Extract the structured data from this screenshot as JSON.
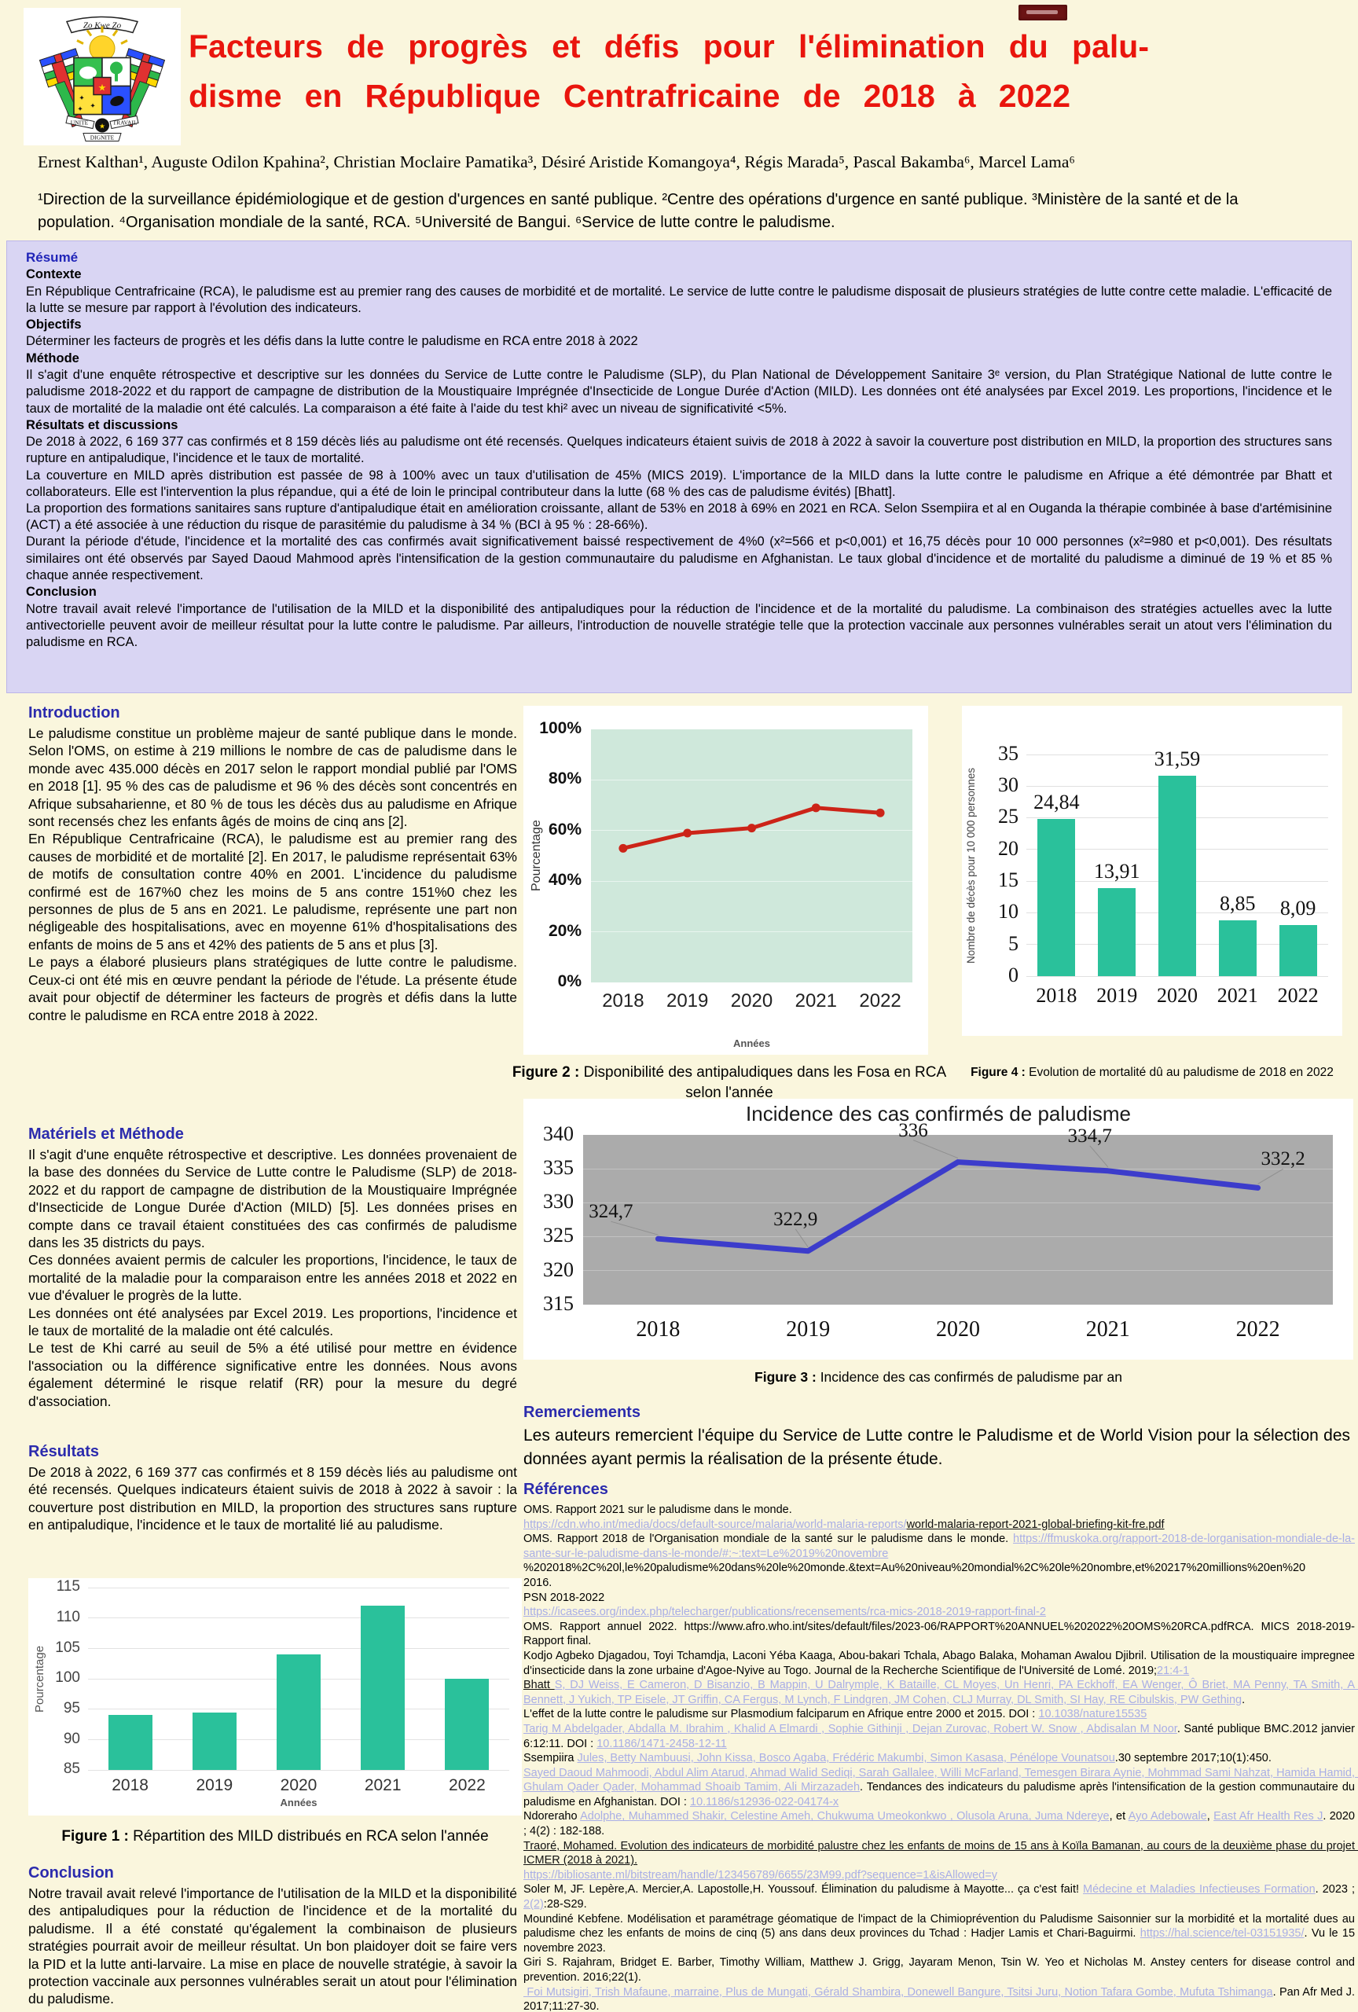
{
  "header": {
    "title_line1": "Facteurs de progrès et défis pour l'élimination du palu-",
    "title_line2": "disme en République Centrafricaine de 2018 à 2022",
    "title_color": "#e9150d",
    "authors": "Ernest Kalthan¹, Auguste Odilon Kpahina², Christian Moclaire Pamatika³, Désiré Aristide Komangoya⁴, Régis Marada⁵, Pascal Bakamba⁶, Marcel Lama⁶",
    "affiliations": "¹Direction de la surveillance épidémiologique et de gestion d'urgences en santé publique. ²Centre des opérations d'urgence en santé publique. ³Ministère de la santé et de la population. ⁴Organisation mondiale de la santé, RCA. ⁵Université de Bangui. ⁶Service de lutte contre le paludisme.",
    "logo": {
      "motto_top": "Zo Kwe Zo",
      "unite": "UNITE",
      "travail": "TRAVAIL",
      "dignite": "DIGNITE"
    }
  },
  "resume": {
    "title": "Résumé",
    "sections": [
      {
        "heading": "Contexte",
        "body": "En République Centrafricaine (RCA), le paludisme est au premier rang des causes de morbidité et de mortalité. Le service de lutte contre le paludisme disposait de plusieurs stratégies de lutte contre cette maladie. L'efficacité de la lutte se mesure par rapport à l'évolution des indicateurs."
      },
      {
        "heading": "Objectifs",
        "body": "Déterminer les facteurs de progrès et les défis dans la lutte contre le paludisme en RCA entre 2018 à 2022"
      },
      {
        "heading": "Méthode",
        "body": "Il s'agit d'une enquête rétrospective et descriptive sur les données du Service de Lutte contre le Paludisme (SLP), du Plan National de Développement Sanitaire 3ᵉ version, du Plan Stratégique National de lutte contre le paludisme 2018-2022 et du rapport de campagne de distribution de la Moustiquaire Imprégnée d'Insecticide de Longue Durée d'Action (MILD). Les données ont été analysées par Excel 2019. Les proportions, l'incidence et le taux de mortalité de la maladie ont été calculés. La comparaison a été faite à l'aide du test khi² avec un niveau de significativité <5%."
      },
      {
        "heading": "Résultats et discussions",
        "body": "De 2018 à 2022, 6 169 377 cas confirmés et 8 159 décès liés au paludisme ont été recensés. Quelques indicateurs étaient suivis de 2018 à 2022 à savoir la couverture post distribution en MILD, la proportion des structures sans rupture en antipaludique, l'incidence et le taux de mortalité.\nLa couverture en MILD après distribution est passée de 98 à 100% avec un taux d'utilisation de 45% (MICS 2019). L'importance de la MILD dans la lutte contre le paludisme en Afrique a été démontrée par Bhatt et collaborateurs. Elle est l'intervention la plus répandue, qui a été de loin le principal contributeur dans la lutte (68 % des cas de paludisme évités) [Bhatt].\nLa proportion des formations sanitaires sans rupture d'antipaludique était en amélioration croissante, allant de 53% en 2018 à 69% en 2021 en RCA. Selon Ssempiira et al en Ouganda la thérapie combinée à base d'artémisinine (ACT) a été associée à une réduction du risque de parasitémie du paludisme à 34 % (BCI à 95 % : 28-66%).\nDurant la période d'étude, l'incidence et la mortalité des cas confirmés avait significativement baissé respectivement de 4%0 (x²=566 et p<0,001) et 16,75 décès pour 10 000 personnes (x²=980 et p<0,001). Des résultats similaires ont été observés par Sayed Daoud Mahmood après l'intensification de la gestion communautaire du paludisme en Afghanistan. Le taux global d'incidence et de mortalité du paludisme a diminué de 19 % et 85 % chaque année respectivement."
      },
      {
        "heading": "Conclusion",
        "body": "Notre travail avait relevé l'importance de l'utilisation de la MILD et la disponibilité des antipaludiques pour la réduction de l'incidence et de la mortalité du paludisme. La combinaison des stratégies actuelles avec la lutte antivectorielle peuvent avoir de meilleur résultat pour la lutte contre le paludisme. Par ailleurs, l'introduction de nouvelle stratégie telle que la protection vaccinale aux personnes vulnérables serait un atout vers l'élimination du paludisme en RCA."
      }
    ]
  },
  "left": {
    "intro_heading": "Introduction",
    "intro_body": "Le paludisme constitue un problème majeur de santé publique dans le monde. Selon l'OMS, on estime à 219 millions le nombre de cas de paludisme dans le monde avec 435.000 décès en 2017 selon le rapport mondial publié par l'OMS en 2018 [1]. 95 % des cas de paludisme et 96 % des décès sont concentrés en Afrique subsaharienne, et 80 % de tous les décès dus au paludisme en Afrique sont recensés chez les enfants âgés de moins de cinq ans [2].\nEn République Centrafricaine (RCA), le paludisme est au premier rang des causes de morbidité et de mortalité [2]. En 2017, le paludisme représentait 63% de motifs de consultation contre 40% en 2001. L'incidence du paludisme confirmé est de 167%0 chez les moins de 5 ans contre 151%0 chez les personnes de plus de 5 ans en 2021. Le paludisme, représente une part non négligeable des hospitalisations, avec en moyenne 61% d'hospitalisations des enfants de moins de 5 ans et 42% des patients de 5 ans et plus [3].\nLe pays a élaboré plusieurs plans stratégiques de lutte contre le paludisme. Ceux-ci ont été mis en œuvre pendant la période de l'étude. La présente étude avait pour objectif de déterminer les facteurs de progrès et défis dans la lutte contre le paludisme en RCA entre 2018 à 2022.",
    "methods_heading": "Matériels et Méthode",
    "methods_body": "Il s'agit d'une enquête rétrospective et descriptive. Les données provenaient de la base des données du Service de Lutte contre le Paludisme (SLP) de 2018-2022 et du rapport de campagne de distribution de la Moustiquaire Imprégnée d'Insecticide de Longue Durée d'Action (MILD) [5]. Les données prises en compte dans ce travail étaient constituées des cas confirmés de paludisme dans les 35 districts du pays.\nCes données avaient permis de calculer les proportions, l'incidence, le taux de mortalité de la maladie pour la comparaison entre les années 2018 et 2022 en vue d'évaluer le progrès de la lutte.\nLes données ont été analysées par Excel 2019. Les proportions, l'incidence et le taux de mortalité de la maladie ont été calculés.\nLe test de Khi carré au seuil de 5% a été utilisé pour mettre en évidence l'association ou la différence significative entre les données. Nous avons également déterminé le risque relatif (RR) pour la mesure du degré d'association.",
    "results_heading": "Résultats",
    "results_body": "De 2018 à 2022, 6 169 377 cas confirmés et 8 159 décès liés au paludisme ont été recensés. Quelques indicateurs étaient suivis de 2018 à 2022 à savoir : la couverture post distribution en MILD, la proportion des structures sans rupture en antipaludique, l'incidence et le taux de mortalité lié au paludisme.",
    "conclusion_heading": "Conclusion",
    "conclusion_body": "Notre travail avait relevé l'importance de l'utilisation de la MILD et la disponibilité des antipaludiques pour la réduction de l'incidence et de la mortalité du paludisme. Il a été constaté qu'également la combinaison de plusieurs stratégies pourrait avoir de meilleur résultat. Un bon plaidoyer doit se faire vers la PID et la lutte anti-larvaire. La mise en place de nouvelle stratégie, à savoir la protection vaccinale aux personnes vulnérables serait un atout pour l'élimination du paludisme."
  },
  "figures": {
    "fig1_caption_prefix": "Figure 1 :",
    "fig1_caption": "Répartition des MILD distribués en RCA selon l'année",
    "fig2_caption_prefix": "Figure 2 :",
    "fig2_caption": "Disponibilité des antipaludiques dans les Fosa en RCA selon l'année",
    "fig3_caption_prefix": "Figure 3 :",
    "fig3_caption": "Incidence des cas confirmés de paludisme par an",
    "fig4_caption_prefix": "Figure 4 :",
    "fig4_caption": "Evolution de mortalité dû au paludisme de 2018 en 2022"
  },
  "remerciements": {
    "heading": "Remerciements",
    "body": "Les auteurs remercient l'équipe du Service de Lutte contre le Paludisme et de World Vision pour la sélection des données ayant permis la réalisation de la présente étude."
  },
  "references": {
    "heading": "Références",
    "items": [
      [
        {
          "t": "OMS. Rapport 2021 sur le paludisme dans le monde.\n",
          "s": "n"
        },
        {
          "t": "https://cdn.who.int/media/docs/default-source/malaria/world-malaria-reports/",
          "s": "l"
        },
        {
          "t": "world-malaria-report-2021-global-briefing-kit-fre.pdf",
          "s": "u"
        }
      ],
      [
        {
          "t": "OMS. Rapport 2018 de l'Organisation mondiale de la santé sur le paludisme dans le monde. ",
          "s": "n"
        },
        {
          "t": "https://ffmuskoka.org/rapport-2018-de-lorganisation-mondiale-de-la-sante-sur-le-paludisme-dans-le-monde/#:~:text=Le%2019%20novembre",
          "s": "l"
        },
        {
          "t": "\n%202018%2C%20l,le%20paludisme%20dans%20le%20monde.&text=Au%20niveau%20mondial%2C%20le%20nombre,et%20217%20millions%20en%20\n2016.",
          "s": "n"
        }
      ],
      [
        {
          "t": "PSN 2018-2022",
          "s": "n"
        }
      ],
      [
        {
          "t": "https://icasees.org/index.php/telecharger/publications/recensements/rca-mics-2018-2019-rapport-final-2",
          "s": "l"
        }
      ],
      [
        {
          "t": "OMS. Rapport annuel 2022. https://www.afro.who.int/sites/default/files/2023-06/RAPPORT%20ANNUEL%202022%20OMS%20RCA.pdfRCA. MICS 2018-2019-Rapport final.",
          "s": "n"
        }
      ],
      [
        {
          "t": "Kodjo Agbeko Djagadou, Toyi Tchamdja, Laconi Yéba Kaaga, Abou-bakari Tchala, Abago Balaka, Mohaman Awalou Djibril. Utilisation de la moustiquaire impregnee d'insecticide dans la zone urbaine d'Agoe-Nyive au Togo. Journal de la Recherche Scientifique de l'Université de Lomé. 2019;",
          "s": "n"
        },
        {
          "t": "21:4-1",
          "s": "l"
        }
      ],
      [
        {
          "t": "Bhatt ",
          "s": "u"
        },
        {
          "t": "S, DJ Weiss, E Cameron, D Bisanzio, B Mappin, U Dalrymple, K Bataille, CL Moyes, Un Henri, PA Eckhoff, EA Wenger, Ô Briet, MA Penny, TA Smith, A Bennett, J Yukich, TP Eisele, JT Griffin, CA Fergus, M Lynch, F Lindgren, JM Cohen, CLJ Murray, DL Smith, SI Hay, RE Cibulskis, PW Gething",
          "s": "l"
        },
        {
          "t": ".\nL'effet de la lutte contre le paludisme sur Plasmodium falciparum en Afrique entre 2000 et 2015. DOI : ",
          "s": "n"
        },
        {
          "t": "10.1038/nature15535",
          "s": "l"
        }
      ],
      [
        {
          "t": "Tarig M Abdelgader, Abdalla M. Ibrahim , Khalid A Elmardi , Sophie Githinji , Dejan Zurovac, Robert W. Snow , Abdisalan M Noor",
          "s": "l"
        },
        {
          "t": ". Santé publique BMC.2012 janvier 6:12:11. DOI : ",
          "s": "n"
        },
        {
          "t": "10.1186/1471-2458-12-11",
          "s": "l"
        }
      ],
      [
        {
          "t": "Ssempiira ",
          "s": "n"
        },
        {
          "t": "Jules, Betty Nambuusi, John Kissa, Bosco Agaba, Frédéric Makumbi, Simon Kasasa, Pénélope Vounatsou",
          "s": "l"
        },
        {
          "t": ".30 septembre 2017;10(1):450.",
          "s": "n"
        }
      ],
      [
        {
          "t": "Sayed Daoud Mahmoodi, Abdul Alim Atarud, Ahmad Walid Sediqi, Sarah Gallalee, Willi McFarland, Temesgen Birara Aynie, Mohmmad Sami Nahzat, Hamida Hamid, Ghulam Qader Qader, Mohammad Shoaib Tamim, Ali Mirzazadeh",
          "s": "l"
        },
        {
          "t": ". Tendances des indicateurs du paludisme après l'intensification de la gestion communautaire du paludisme en Afghanistan. DOI : ",
          "s": "n"
        },
        {
          "t": "10.1186/s12936-022-04174-x",
          "s": "l"
        }
      ],
      [
        {
          "t": "Ndoreraho ",
          "s": "n"
        },
        {
          "t": "Adolphe, Muhammed Shakir, Celestine Ameh, Chukwuma Umeokonkwo , Olusola Aruna, Juma Ndereye",
          "s": "l"
        },
        {
          "t": ", et ",
          "s": "n"
        },
        {
          "t": "Ayo Adebowale",
          "s": "l"
        },
        {
          "t": ", ",
          "s": "n"
        },
        {
          "t": "East Afr Health Res J",
          "s": "l"
        },
        {
          "t": ". 2020 ; 4(2) : 182-188.",
          "s": "n"
        }
      ],
      [
        {
          "t": "Traoré, Mohamed. Evolution des indicateurs de morbidité palustre chez les enfants de moins de 15 ans à Koïla Bamanan, au cours de la deuxième phase du projet ICMER (2018 à 2021).",
          "s": "u"
        }
      ],
      [
        {
          "t": "https://bibliosante.ml/bitstream/handle/123456789/6655/23M99.pdf?sequence=1&isAllowed=y",
          "s": "l"
        }
      ],
      [
        {
          "t": "Soler M, JF. Lepère,A. Mercier,A. Lapostolle,H. Youssouf. Élimination du paludisme à Mayotte... ça c'est fait! ",
          "s": "n"
        },
        {
          "t": "Médecine et Maladies Infectieuses Formation",
          "s": "l"
        },
        {
          "t": ". 2023 ; ",
          "s": "n"
        },
        {
          "t": "2(2)",
          "s": "l"
        },
        {
          "t": ":28-S29.",
          "s": "n"
        }
      ],
      [
        {
          "t": "Moundiné Kebfene. Modélisation et paramétrage géomatique de l'impact de la Chimioprévention du Paludisme Saisonnier sur la morbidité et la mortalité dues au paludisme chez les enfants de moins de cinq (5) ans dans deux provinces du Tchad : Hadjer Lamis et Chari-Baguirmi. ",
          "s": "n"
        },
        {
          "t": "https://hal.science/tel-03151935/",
          "s": "l"
        },
        {
          "t": ". Vu le 15 novembre 2023.",
          "s": "n"
        }
      ],
      [
        {
          "t": "Giri S. Rajahram, Bridget E. Barber, Timothy William, Matthew J. Grigg, Jayaram Menon, Tsin W. Yeo et Nicholas M. Anstey centers for disease control and prevention. 2016;22(1).",
          "s": "n"
        }
      ],
      [
        {
          "t": " Foi Mutsigiri, Trish Mafaune, marraine, Plus de Mungati, Gérald Shambira, Donewell Bangure, Tsitsi Juru, Notion Tafara Gombe, Mufuta Tshimanga",
          "s": "l"
        },
        {
          "t": ". Pan Afr Med J. 2017;11:27-30.",
          "s": "n"
        }
      ]
    ]
  },
  "chart_data": [
    {
      "id": "fig1",
      "type": "bar",
      "categories": [
        "2018",
        "2019",
        "2020",
        "2021",
        "2022"
      ],
      "values": [
        94,
        94.5,
        104,
        112,
        100
      ],
      "title": "",
      "xlabel": "Années",
      "ylabel": "Pourcentage",
      "ylim": [
        85,
        115
      ],
      "ytick_step": 5,
      "baseline": 85,
      "bar_color": "#2ac19b",
      "grid": true,
      "legend": "none"
    },
    {
      "id": "fig2",
      "type": "line",
      "categories": [
        "2018",
        "2019",
        "2020",
        "2021",
        "2022"
      ],
      "values": [
        53,
        59,
        61,
        69,
        67
      ],
      "title": "",
      "xlabel": "Années",
      "ylabel": "Pourcentage",
      "ylim": [
        0,
        100
      ],
      "ytick_step": 20,
      "ytick_suffix": "%",
      "line_color": "#cc2418",
      "plot_bg": "#cfe8db",
      "marker": true,
      "grid": true,
      "legend": "none"
    },
    {
      "id": "fig3",
      "type": "line",
      "categories": [
        "2018",
        "2019",
        "2020",
        "2021",
        "2022"
      ],
      "values": [
        324.7,
        322.9,
        336,
        334.7,
        332.2
      ],
      "labels": [
        "324,7",
        "322,9",
        "336",
        "334,7",
        "332,2"
      ],
      "title": "Incidence des cas confirmés de paludisme",
      "xlabel": "",
      "ylabel": "",
      "ylim": [
        315,
        340
      ],
      "ytick_step": 5,
      "line_color": "#3c3ccb",
      "plot_bg": "#ababab",
      "marker": false,
      "grid": true,
      "legend": "none"
    },
    {
      "id": "fig4",
      "type": "bar",
      "categories": [
        "2018",
        "2019",
        "2020",
        "2021",
        "2022"
      ],
      "values": [
        24.84,
        13.91,
        31.59,
        8.85,
        8.09
      ],
      "labels": [
        "24,84",
        "13,91",
        "31,59",
        "8,85",
        "8,09"
      ],
      "title": "",
      "xlabel": "",
      "ylabel": "Nombre de décès pour 10 000 personnes",
      "ylim": [
        0,
        35
      ],
      "ytick_step": 5,
      "baseline": 0,
      "bar_color": "#2ac19b",
      "grid": true,
      "legend": "none"
    }
  ]
}
